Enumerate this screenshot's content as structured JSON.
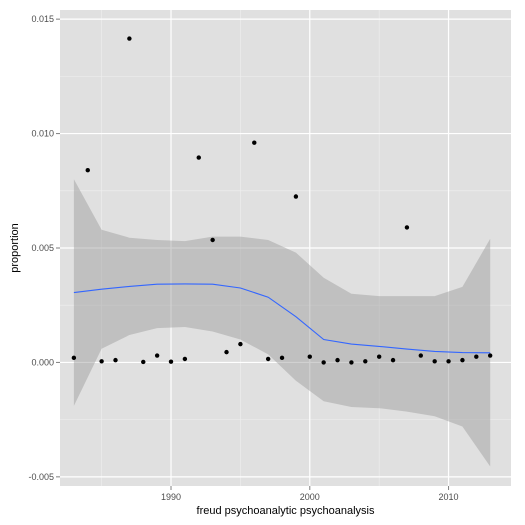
{
  "chart_data": {
    "type": "scatter",
    "xlabel": "freud psychoanalytic psychoanalysis",
    "ylabel": "proportion",
    "xlim": [
      1982,
      2014.5
    ],
    "ylim": [
      -0.0054,
      0.0154
    ],
    "x_ticks": [
      1990,
      2000,
      2010
    ],
    "x_tick_labels": [
      "1990",
      "2000",
      "2010"
    ],
    "y_ticks": [
      -0.005,
      0.0,
      0.005,
      0.01,
      0.015
    ],
    "y_tick_labels": [
      "-0.005",
      "0.000",
      "0.005",
      "0.010",
      "0.015"
    ],
    "grid": true,
    "points": [
      {
        "x": 1983,
        "y": 0.0002
      },
      {
        "x": 1984,
        "y": 0.0084
      },
      {
        "x": 1985,
        "y": 5e-05
      },
      {
        "x": 1986,
        "y": 0.0001
      },
      {
        "x": 1987,
        "y": 0.01415
      },
      {
        "x": 1988,
        "y": 2e-05
      },
      {
        "x": 1989,
        "y": 0.0003
      },
      {
        "x": 1990,
        "y": 3e-05
      },
      {
        "x": 1991,
        "y": 0.00015
      },
      {
        "x": 1992,
        "y": 0.00895
      },
      {
        "x": 1993,
        "y": 0.00535
      },
      {
        "x": 1994,
        "y": 0.00045
      },
      {
        "x": 1995,
        "y": 0.0008
      },
      {
        "x": 1996,
        "y": 0.0096
      },
      {
        "x": 1997,
        "y": 0.00015
      },
      {
        "x": 1998,
        "y": 0.0002
      },
      {
        "x": 1999,
        "y": 0.00725
      },
      {
        "x": 2000,
        "y": 0.00025
      },
      {
        "x": 2001,
        "y": 0.0
      },
      {
        "x": 2002,
        "y": 0.0001
      },
      {
        "x": 2003,
        "y": 0.0
      },
      {
        "x": 2004,
        "y": 5e-05
      },
      {
        "x": 2005,
        "y": 0.00025
      },
      {
        "x": 2006,
        "y": 0.0001
      },
      {
        "x": 2007,
        "y": 0.0059
      },
      {
        "x": 2008,
        "y": 0.0003
      },
      {
        "x": 2009,
        "y": 5e-05
      },
      {
        "x": 2010,
        "y": 5e-05
      },
      {
        "x": 2011,
        "y": 0.0001
      },
      {
        "x": 2012,
        "y": 0.00025
      },
      {
        "x": 2013,
        "y": 0.0003
      }
    ],
    "smooth": {
      "x": [
        1983,
        1985,
        1987,
        1989,
        1991,
        1993,
        1995,
        1997,
        1999,
        2001,
        2003,
        2005,
        2007,
        2009,
        2011,
        2013
      ],
      "y": [
        0.00305,
        0.0032,
        0.00332,
        0.00342,
        0.00343,
        0.00342,
        0.00325,
        0.00285,
        0.002,
        0.001,
        0.0008,
        0.0007,
        0.00058,
        0.00048,
        0.00043,
        0.00042
      ],
      "upper": [
        0.008,
        0.0058,
        0.00545,
        0.00535,
        0.0053,
        0.0055,
        0.0055,
        0.00535,
        0.0048,
        0.0037,
        0.003,
        0.0029,
        0.0029,
        0.0029,
        0.0033,
        0.0054
      ],
      "lower": [
        -0.0019,
        0.0006,
        0.0012,
        0.0015,
        0.00155,
        0.00135,
        0.001,
        0.00035,
        -0.0008,
        -0.0017,
        -0.00195,
        -0.002,
        -0.00215,
        -0.00235,
        -0.0028,
        -0.00455
      ]
    },
    "colors": {
      "panel": "#e0e0e0",
      "grid_major": "#ffffff",
      "grid_minor": "#efefef",
      "points": "#000000",
      "line": "#3366ff",
      "ribbon": "#999999"
    }
  }
}
